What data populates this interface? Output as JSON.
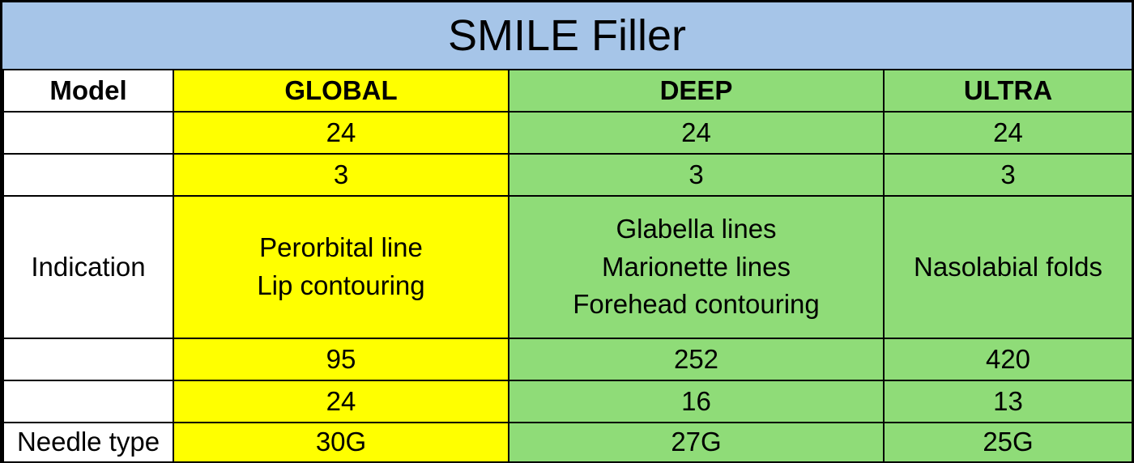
{
  "title": "SMILE Filler",
  "header": {
    "label": "Model",
    "models": [
      "GLOBAL",
      "DEEP",
      "ULTRA"
    ]
  },
  "rows": [
    {
      "label": "",
      "values": [
        "24",
        "24",
        "24"
      ]
    },
    {
      "label": "",
      "values": [
        "3",
        "3",
        "3"
      ]
    },
    {
      "label": "Indication",
      "values": [
        [
          "Perorbital line",
          "Lip contouring"
        ],
        [
          "Glabella lines",
          "Marionette lines",
          "Forehead contouring"
        ],
        [
          "Nasolabial folds"
        ]
      ]
    },
    {
      "label": "",
      "values": [
        "95",
        "252",
        "420"
      ]
    },
    {
      "label": "",
      "values": [
        "24",
        "16",
        "13"
      ]
    },
    {
      "label": "Needle type",
      "values": [
        "30G",
        "27G",
        "25G"
      ]
    }
  ],
  "colors": {
    "title_bg": "#a6c5e8",
    "global_col": "#ffff00",
    "other_cols": "#8fdc78"
  }
}
